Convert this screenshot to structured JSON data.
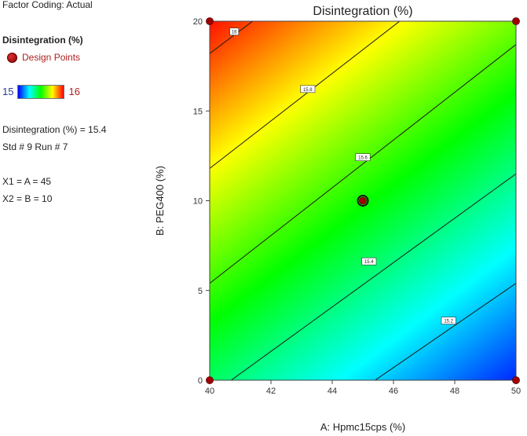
{
  "sidebar": {
    "factor_coding": "Factor Coding: Actual",
    "response_title": "Disintegration (%)",
    "design_points_label": "Design Points",
    "scale_min": "15",
    "scale_max": "16",
    "prediction": "Disintegration (%) = 15.4",
    "std_run": "Std # 9 Run # 7",
    "x1": "X1 = A = 45",
    "x2": "X2 = B = 10"
  },
  "chart_data": {
    "type": "contour",
    "title": "Disintegration (%)",
    "xlabel": "A: Hpmc15cps (%)",
    "ylabel": "B: PEG400 (%)",
    "xlim": [
      40,
      50
    ],
    "ylim": [
      0,
      20
    ],
    "x_ticks": [
      "40",
      "42",
      "44",
      "46",
      "48",
      "50"
    ],
    "y_ticks": [
      "0",
      "5",
      "10",
      "15",
      "20"
    ],
    "colorscale": [
      "#0000ff",
      "#00ffff",
      "#00ff00",
      "#ffff00",
      "#ff0000"
    ],
    "response_range": [
      15,
      16
    ],
    "contours": [
      {
        "level": 15.2,
        "label": "15.2",
        "points": [
          [
            45.4,
            0
          ],
          [
            50,
            5.4
          ]
        ]
      },
      {
        "level": 15.4,
        "label": "15.4",
        "points": [
          [
            40.7,
            0
          ],
          [
            50,
            11.5
          ]
        ]
      },
      {
        "level": 15.6,
        "label": "15.6",
        "points": [
          [
            40,
            5.4
          ],
          [
            50,
            18.7
          ]
        ]
      },
      {
        "level": 15.8,
        "label": "15.8",
        "points": [
          [
            40,
            11.8
          ],
          [
            46.2,
            20
          ]
        ]
      },
      {
        "level": 16,
        "label": "16",
        "points": [
          [
            40,
            18.2
          ],
          [
            41.4,
            20
          ]
        ]
      }
    ],
    "contour_label_positions": [
      [
        47.8,
        3.3
      ],
      [
        45.2,
        6.6
      ],
      [
        45,
        12.4
      ],
      [
        43.2,
        16.2
      ],
      [
        40.8,
        19.4
      ]
    ],
    "design_points": [
      [
        40,
        0
      ],
      [
        50,
        0
      ],
      [
        40,
        20
      ],
      [
        50,
        20
      ],
      [
        45,
        10
      ]
    ],
    "current_point": [
      45,
      10
    ]
  }
}
